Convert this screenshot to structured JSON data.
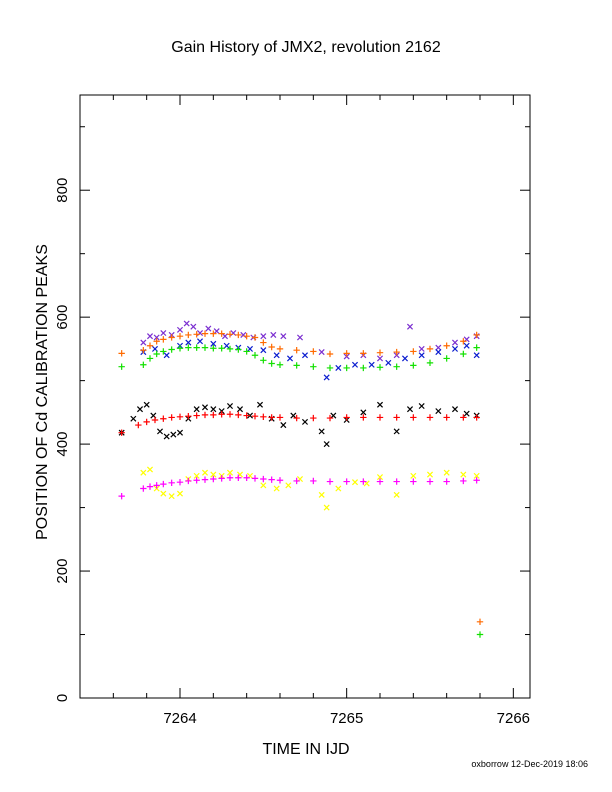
{
  "chart_data": {
    "type": "scatter",
    "title": "Gain History of JMX2, revolution 2162",
    "xlabel": "TIME IN IJD",
    "ylabel": "POSITION OF Cd CALIBRATION PEAKS",
    "xlim": [
      7263.4,
      7266.1
    ],
    "ylim": [
      0,
      950
    ],
    "x_ticks": [
      7264,
      7265,
      7266
    ],
    "x_tick_labels": [
      "7264",
      "7265",
      "7266"
    ],
    "y_ticks": [
      0,
      200,
      400,
      600,
      800
    ],
    "y_tick_labels": [
      "0",
      "200",
      "400",
      "600",
      "800"
    ],
    "grid": false,
    "legend": "none",
    "series": [
      {
        "marker": "x",
        "color": "#7b2fd0",
        "points": [
          [
            7263.78,
            560
          ],
          [
            7263.82,
            570
          ],
          [
            7263.86,
            568
          ],
          [
            7263.9,
            575
          ],
          [
            7263.95,
            572
          ],
          [
            7264.0,
            580
          ],
          [
            7264.04,
            590
          ],
          [
            7264.08,
            585
          ],
          [
            7264.12,
            575
          ],
          [
            7264.17,
            582
          ],
          [
            7264.22,
            578
          ],
          [
            7264.27,
            570
          ],
          [
            7264.32,
            575
          ],
          [
            7264.38,
            572
          ],
          [
            7264.44,
            568
          ],
          [
            7264.5,
            570
          ],
          [
            7264.56,
            572
          ],
          [
            7264.62,
            570
          ],
          [
            7264.72,
            568
          ],
          [
            7264.85,
            545
          ],
          [
            7265.0,
            538
          ],
          [
            7265.1,
            540
          ],
          [
            7265.2,
            535
          ],
          [
            7265.3,
            540
          ],
          [
            7265.38,
            585
          ],
          [
            7265.45,
            550
          ],
          [
            7265.55,
            552
          ],
          [
            7265.65,
            560
          ],
          [
            7265.72,
            565
          ],
          [
            7265.78,
            570
          ]
        ]
      },
      {
        "marker": "x",
        "color": "#0a1ccf",
        "points": [
          [
            7263.78,
            545
          ],
          [
            7263.85,
            550
          ],
          [
            7263.92,
            540
          ],
          [
            7264.0,
            555
          ],
          [
            7264.05,
            560
          ],
          [
            7264.12,
            562
          ],
          [
            7264.2,
            558
          ],
          [
            7264.28,
            555
          ],
          [
            7264.35,
            552
          ],
          [
            7264.42,
            550
          ],
          [
            7264.5,
            548
          ],
          [
            7264.58,
            540
          ],
          [
            7264.66,
            535
          ],
          [
            7264.75,
            540
          ],
          [
            7264.88,
            505
          ],
          [
            7264.95,
            520
          ],
          [
            7265.05,
            525
          ],
          [
            7265.15,
            525
          ],
          [
            7265.25,
            528
          ],
          [
            7265.35,
            535
          ],
          [
            7265.45,
            540
          ],
          [
            7265.55,
            545
          ],
          [
            7265.65,
            550
          ],
          [
            7265.72,
            555
          ],
          [
            7265.78,
            540
          ]
        ]
      },
      {
        "marker": "+",
        "color": "#ff6a00",
        "points": [
          [
            7263.65,
            543
          ],
          [
            7263.78,
            548
          ],
          [
            7263.82,
            555
          ],
          [
            7263.86,
            562
          ],
          [
            7263.9,
            565
          ],
          [
            7263.95,
            568
          ],
          [
            7264.0,
            570
          ],
          [
            7264.05,
            572
          ],
          [
            7264.1,
            573
          ],
          [
            7264.15,
            574
          ],
          [
            7264.2,
            574
          ],
          [
            7264.25,
            574
          ],
          [
            7264.3,
            573
          ],
          [
            7264.35,
            572
          ],
          [
            7264.4,
            570
          ],
          [
            7264.45,
            568
          ],
          [
            7264.5,
            560
          ],
          [
            7264.55,
            553
          ],
          [
            7264.6,
            550
          ],
          [
            7264.7,
            548
          ],
          [
            7264.8,
            546
          ],
          [
            7264.9,
            542
          ],
          [
            7265.0,
            543
          ],
          [
            7265.1,
            543
          ],
          [
            7265.2,
            544
          ],
          [
            7265.3,
            545
          ],
          [
            7265.4,
            546
          ],
          [
            7265.5,
            550
          ],
          [
            7265.6,
            555
          ],
          [
            7265.7,
            562
          ],
          [
            7265.78,
            572
          ],
          [
            7265.8,
            120
          ]
        ]
      },
      {
        "marker": "+",
        "color": "#12e000",
        "points": [
          [
            7263.65,
            522
          ],
          [
            7263.78,
            525
          ],
          [
            7263.82,
            535
          ],
          [
            7263.86,
            542
          ],
          [
            7263.9,
            546
          ],
          [
            7263.95,
            549
          ],
          [
            7264.0,
            551
          ],
          [
            7264.05,
            552
          ],
          [
            7264.1,
            552
          ],
          [
            7264.15,
            552
          ],
          [
            7264.2,
            551
          ],
          [
            7264.25,
            551
          ],
          [
            7264.3,
            550
          ],
          [
            7264.35,
            549
          ],
          [
            7264.4,
            546
          ],
          [
            7264.45,
            540
          ],
          [
            7264.5,
            532
          ],
          [
            7264.55,
            527
          ],
          [
            7264.6,
            525
          ],
          [
            7264.7,
            524
          ],
          [
            7264.8,
            522
          ],
          [
            7264.9,
            520
          ],
          [
            7265.0,
            520
          ],
          [
            7265.1,
            520
          ],
          [
            7265.2,
            521
          ],
          [
            7265.3,
            522
          ],
          [
            7265.4,
            524
          ],
          [
            7265.5,
            528
          ],
          [
            7265.6,
            535
          ],
          [
            7265.7,
            542
          ],
          [
            7265.78,
            552
          ],
          [
            7265.8,
            100
          ]
        ]
      },
      {
        "marker": "x",
        "color": "#000000",
        "points": [
          [
            7263.65,
            418
          ],
          [
            7263.72,
            440
          ],
          [
            7263.76,
            455
          ],
          [
            7263.8,
            462
          ],
          [
            7263.84,
            445
          ],
          [
            7263.88,
            420
          ],
          [
            7263.92,
            412
          ],
          [
            7263.96,
            415
          ],
          [
            7264.0,
            418
          ],
          [
            7264.05,
            440
          ],
          [
            7264.1,
            455
          ],
          [
            7264.15,
            458
          ],
          [
            7264.2,
            455
          ],
          [
            7264.25,
            452
          ],
          [
            7264.3,
            460
          ],
          [
            7264.36,
            455
          ],
          [
            7264.42,
            445
          ],
          [
            7264.48,
            462
          ],
          [
            7264.55,
            440
          ],
          [
            7264.62,
            430
          ],
          [
            7264.68,
            445
          ],
          [
            7264.75,
            435
          ],
          [
            7264.85,
            420
          ],
          [
            7264.88,
            400
          ],
          [
            7264.92,
            445
          ],
          [
            7265.0,
            438
          ],
          [
            7265.1,
            450
          ],
          [
            7265.2,
            462
          ],
          [
            7265.3,
            420
          ],
          [
            7265.38,
            455
          ],
          [
            7265.45,
            460
          ],
          [
            7265.55,
            452
          ],
          [
            7265.65,
            455
          ],
          [
            7265.72,
            448
          ],
          [
            7265.78,
            445
          ]
        ]
      },
      {
        "marker": "+",
        "color": "#ff0000",
        "points": [
          [
            7263.65,
            418
          ],
          [
            7263.75,
            430
          ],
          [
            7263.8,
            435
          ],
          [
            7263.85,
            438
          ],
          [
            7263.9,
            440
          ],
          [
            7263.95,
            442
          ],
          [
            7264.0,
            443
          ],
          [
            7264.05,
            444
          ],
          [
            7264.1,
            445
          ],
          [
            7264.15,
            446
          ],
          [
            7264.2,
            446
          ],
          [
            7264.25,
            447
          ],
          [
            7264.3,
            447
          ],
          [
            7264.35,
            446
          ],
          [
            7264.4,
            445
          ],
          [
            7264.45,
            444
          ],
          [
            7264.5,
            443
          ],
          [
            7264.55,
            442
          ],
          [
            7264.6,
            442
          ],
          [
            7264.7,
            441
          ],
          [
            7264.8,
            441
          ],
          [
            7264.9,
            441
          ],
          [
            7265.0,
            442
          ],
          [
            7265.1,
            442
          ],
          [
            7265.2,
            442
          ],
          [
            7265.3,
            442
          ],
          [
            7265.4,
            442
          ],
          [
            7265.5,
            442
          ],
          [
            7265.6,
            442
          ],
          [
            7265.7,
            442
          ],
          [
            7265.78,
            442
          ]
        ]
      },
      {
        "marker": "x",
        "color": "#ffff00",
        "points": [
          [
            7263.78,
            355
          ],
          [
            7263.82,
            360
          ],
          [
            7263.86,
            330
          ],
          [
            7263.9,
            322
          ],
          [
            7263.95,
            318
          ],
          [
            7264.0,
            322
          ],
          [
            7264.05,
            345
          ],
          [
            7264.1,
            350
          ],
          [
            7264.15,
            355
          ],
          [
            7264.2,
            352
          ],
          [
            7264.25,
            350
          ],
          [
            7264.3,
            355
          ],
          [
            7264.36,
            352
          ],
          [
            7264.42,
            350
          ],
          [
            7264.5,
            335
          ],
          [
            7264.58,
            330
          ],
          [
            7264.65,
            335
          ],
          [
            7264.72,
            345
          ],
          [
            7264.85,
            320
          ],
          [
            7264.88,
            300
          ],
          [
            7264.95,
            330
          ],
          [
            7265.05,
            340
          ],
          [
            7265.12,
            338
          ],
          [
            7265.2,
            348
          ],
          [
            7265.3,
            320
          ],
          [
            7265.4,
            350
          ],
          [
            7265.5,
            352
          ],
          [
            7265.6,
            355
          ],
          [
            7265.7,
            352
          ],
          [
            7265.78,
            350
          ]
        ]
      },
      {
        "marker": "+",
        "color": "#ff00ff",
        "points": [
          [
            7263.65,
            318
          ],
          [
            7263.78,
            330
          ],
          [
            7263.82,
            333
          ],
          [
            7263.86,
            335
          ],
          [
            7263.9,
            337
          ],
          [
            7263.95,
            339
          ],
          [
            7264.0,
            340
          ],
          [
            7264.05,
            342
          ],
          [
            7264.1,
            343
          ],
          [
            7264.15,
            344
          ],
          [
            7264.2,
            345
          ],
          [
            7264.25,
            346
          ],
          [
            7264.3,
            347
          ],
          [
            7264.35,
            347
          ],
          [
            7264.4,
            347
          ],
          [
            7264.45,
            346
          ],
          [
            7264.5,
            345
          ],
          [
            7264.55,
            344
          ],
          [
            7264.6,
            343
          ],
          [
            7264.7,
            342
          ],
          [
            7264.8,
            342
          ],
          [
            7264.9,
            341
          ],
          [
            7265.0,
            341
          ],
          [
            7265.1,
            341
          ],
          [
            7265.2,
            341
          ],
          [
            7265.3,
            341
          ],
          [
            7265.4,
            341
          ],
          [
            7265.5,
            341
          ],
          [
            7265.6,
            341
          ],
          [
            7265.7,
            342
          ],
          [
            7265.78,
            343
          ]
        ]
      }
    ]
  },
  "footer": {
    "credit": "oxborrow 12-Dec-2019 18:06"
  }
}
